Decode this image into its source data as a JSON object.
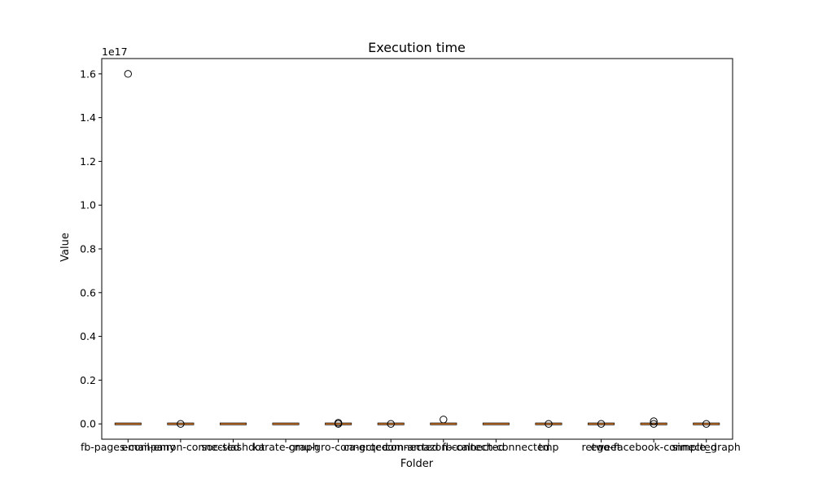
{
  "chart_data": {
    "type": "boxplot",
    "title": "Execution time",
    "xlabel": "Folder",
    "ylabel": "Value",
    "y_offset_label": "1e17",
    "y_scale": 1e+17,
    "ylim": [
      -0.07,
      1.67
    ],
    "yticks": [
      0.0,
      0.2,
      0.4,
      0.6,
      0.8,
      1.0,
      1.2,
      1.4,
      1.6
    ],
    "ytick_labels": [
      "0.0",
      "0.2",
      "0.4",
      "0.6",
      "0.8",
      "1.0",
      "1.2",
      "1.4",
      "1.6"
    ],
    "categories": [
      "fb-pages-company",
      "email-enron-connected",
      "soc-slashdot",
      "karate-graph",
      "cmu-gro-connected",
      "ca-grqc-connected",
      "com-amazon-connected",
      "fb-caltech-connected",
      "tmp",
      "retweet",
      "ego-facebook-connected",
      "simple_graph"
    ],
    "tick_labels": [
      "fb-pages-company",
      "email-enron-connected",
      "soc-slashdot",
      "karate-graph",
      "cmu-gro-connected",
      "ca-grqc-connected",
      "com-amazon-connected",
      "fb-caltech-connected",
      "tmp",
      "retweet",
      "ego-facebook-connected",
      "simple_graph"
    ],
    "outliers": [
      [
        1.6
      ],
      [
        0.0
      ],
      [],
      [],
      [
        0.0,
        0.005
      ],
      [
        0.0
      ],
      [
        0.02
      ],
      [],
      [
        0.0
      ],
      [
        0.0
      ],
      [
        0.0,
        0.012
      ],
      [
        0.0
      ]
    ],
    "box_color": "#000000",
    "median_color": "#ff7f0e",
    "grid": false
  }
}
